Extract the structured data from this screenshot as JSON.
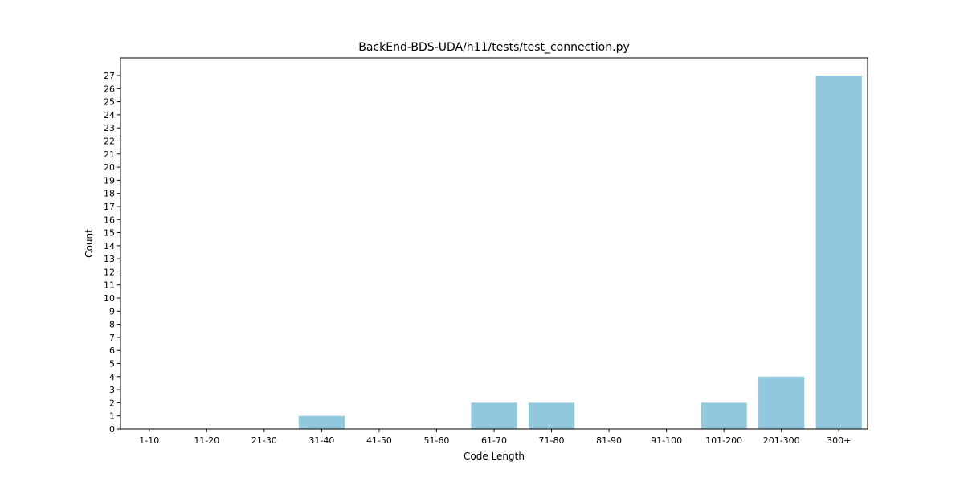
{
  "chart_data": {
    "type": "bar",
    "title": "BackEnd-BDS-UDA/h11/tests/test_connection.py",
    "xlabel": "Code Length",
    "ylabel": "Count",
    "categories": [
      "1-10",
      "11-20",
      "21-30",
      "31-40",
      "41-50",
      "51-60",
      "61-70",
      "71-80",
      "81-90",
      "91-100",
      "101-200",
      "201-300",
      "300+"
    ],
    "values": [
      0,
      0,
      0,
      1,
      0,
      0,
      2,
      2,
      0,
      0,
      2,
      4,
      27
    ],
    "ylim": [
      0,
      28.35
    ],
    "yticks": [
      0,
      1,
      2,
      3,
      4,
      5,
      6,
      7,
      8,
      9,
      10,
      11,
      12,
      13,
      14,
      15,
      16,
      17,
      18,
      19,
      20,
      21,
      22,
      23,
      24,
      25,
      26,
      27
    ],
    "bar_color": "#92c8de",
    "grid": false,
    "legend": "none"
  }
}
